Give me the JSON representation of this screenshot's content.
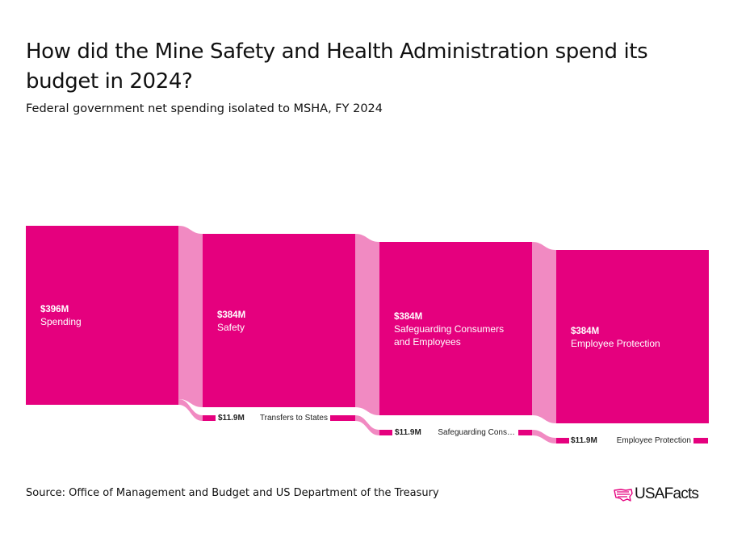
{
  "title": "How did the Mine Safety and Health Administration spend its budget in 2024?",
  "subtitle": "Federal government net spending isolated to MSHA, FY 2024",
  "source": "Source: Office of Management and Budget and US Department of the Treasury",
  "logo": {
    "text": "USAFacts",
    "icon": "usa-map-flag-icon"
  },
  "colors": {
    "node": "#e5007e",
    "link": "#f18ac2",
    "text_dark": "#222222"
  },
  "diagram": {
    "type": "sankey",
    "levels": [
      {
        "main": {
          "label": "Spending",
          "value_label": "$396M",
          "value": 396
        }
      },
      {
        "main": {
          "label": "Safety",
          "value_label": "$384M",
          "value": 384
        },
        "minor": {
          "label": "Transfers to States",
          "value_label": "$11.9M",
          "value": 11.9
        }
      },
      {
        "main": {
          "label_lines": [
            "Safeguarding Consumers",
            "and Employees"
          ],
          "value_label": "$384M",
          "value": 384
        },
        "minor": {
          "label": "Safeguarding Cons…",
          "value_label": "$11.9M",
          "value": 11.9
        }
      },
      {
        "main": {
          "label": "Employee Protection",
          "value_label": "$384M",
          "value": 384
        },
        "minor": {
          "label": "Employee Protection",
          "value_label": "$11.9M",
          "value": 11.9
        }
      }
    ]
  }
}
